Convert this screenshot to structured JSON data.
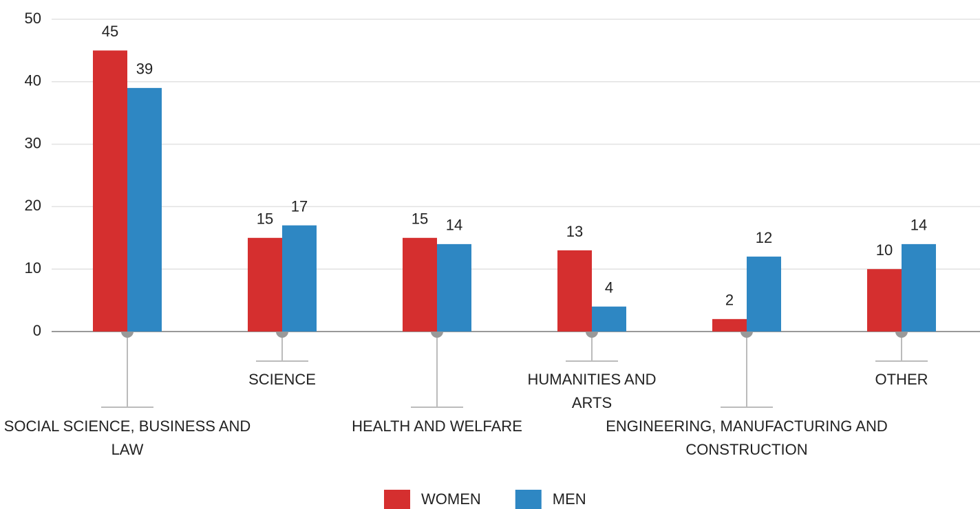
{
  "chart_data": {
    "type": "bar",
    "categories": [
      "SOCIAL SCIENCE, BUSINESS AND LAW",
      "SCIENCE",
      "HEALTH AND WELFARE",
      "HUMANITIES AND ARTS",
      "ENGINEERING, MANUFACTURING AND CONSTRUCTION",
      "OTHER"
    ],
    "series": [
      {
        "name": "WOMEN",
        "color": "#d52f2f",
        "values": [
          45,
          15,
          15,
          13,
          2,
          10
        ]
      },
      {
        "name": "MEN",
        "color": "#2e87c3",
        "values": [
          39,
          17,
          14,
          4,
          12,
          14
        ]
      }
    ],
    "ylim": [
      0,
      50
    ],
    "yticks": [
      0,
      10,
      20,
      30,
      40,
      50
    ],
    "grid": true,
    "legend": "bottom"
  }
}
